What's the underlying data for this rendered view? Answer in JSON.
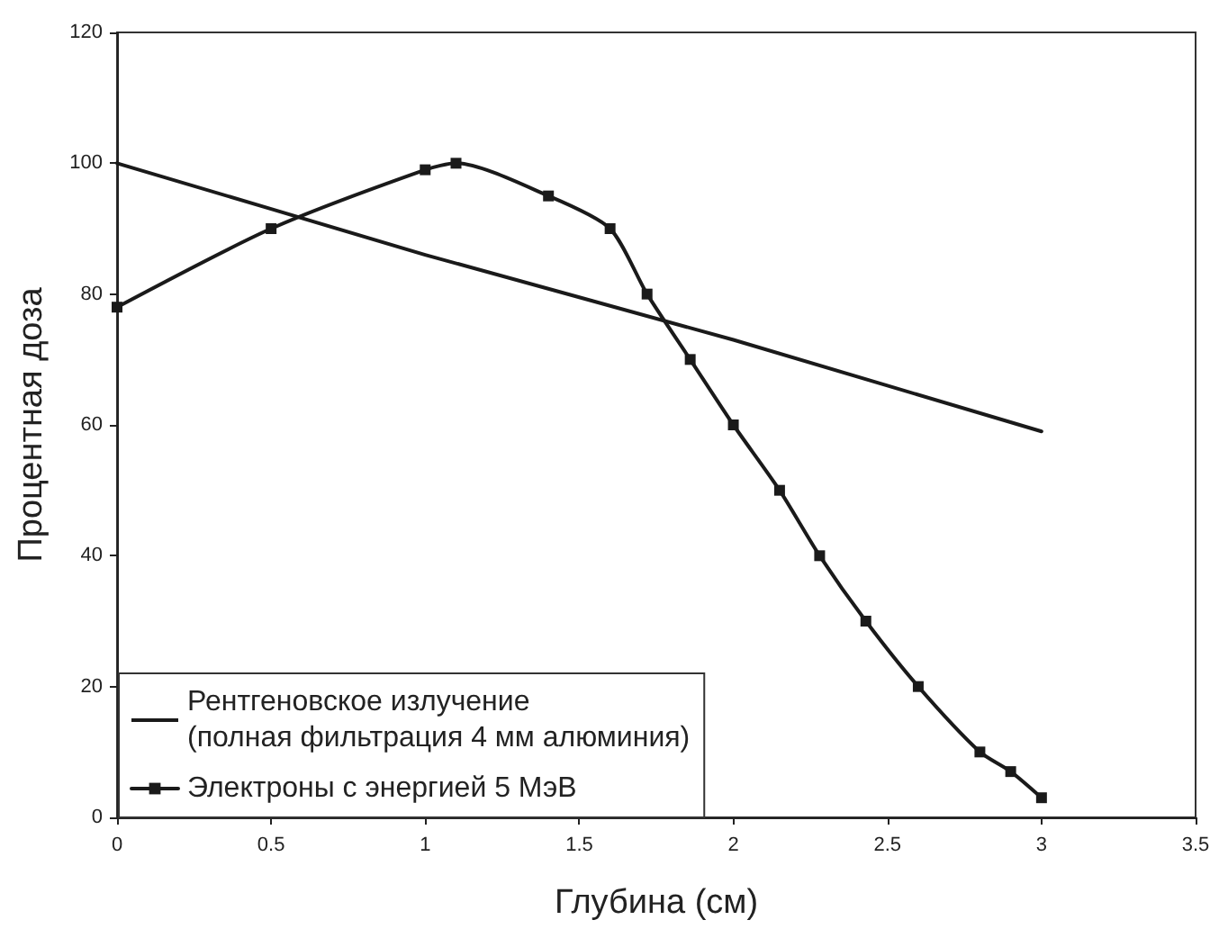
{
  "chart_data": {
    "type": "line",
    "xlabel": "Глубина (см)",
    "ylabel": "Процентная доза",
    "series": [
      {
        "name": "Рентгеновское излучение\n(полная фильтрация 4 мм алюминия)",
        "color": "#1a1a1a",
        "marker": "none",
        "x": [
          0,
          0.5,
          1,
          1.5,
          2,
          2.5,
          3
        ],
        "values": [
          100,
          93,
          86,
          79.5,
          73,
          66,
          59
        ]
      },
      {
        "name": "Электроны с энергией 5 МэВ",
        "color": "#1a1a1a",
        "marker": "square",
        "x": [
          0,
          0.5,
          1,
          1.1,
          1.4,
          1.6,
          1.72,
          1.86,
          2,
          2.15,
          2.28,
          2.43,
          2.6,
          2.8,
          2.9,
          3
        ],
        "values": [
          78,
          90,
          99,
          100,
          95,
          90,
          80,
          70,
          60,
          50,
          40,
          30,
          20,
          10,
          7,
          3
        ]
      }
    ],
    "xlim": [
      0,
      3.5
    ],
    "xticks": [
      0,
      0.5,
      1,
      1.5,
      2,
      2.5,
      3,
      3.5
    ],
    "ylim": [
      0,
      120
    ],
    "yticks": [
      0,
      20,
      40,
      60,
      80,
      100,
      120
    ],
    "grid": false,
    "legend": "bottom left"
  }
}
